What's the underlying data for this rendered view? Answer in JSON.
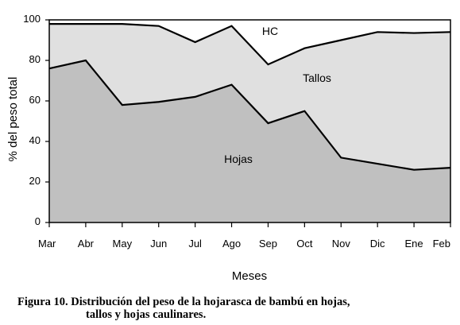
{
  "chart_data": {
    "type": "area",
    "stacked": true,
    "categories": [
      "Mar",
      "Abr",
      "May",
      "Jun",
      "Jul",
      "Ago",
      "Sep",
      "Oct",
      "Nov",
      "Dic",
      "Ene",
      "Feb"
    ],
    "series": [
      {
        "name": "Hojas",
        "cumulative": [
          76,
          80,
          58,
          59.5,
          62,
          68,
          49,
          55,
          32,
          29,
          26,
          27
        ],
        "color": "#c0c0c0"
      },
      {
        "name": "Tallos",
        "cumulative": [
          98,
          98,
          98,
          97,
          89,
          97,
          78,
          86,
          90,
          94,
          93.5,
          94
        ],
        "color": "#e0e0e0"
      },
      {
        "name": "HC",
        "cumulative": [
          100,
          100,
          100,
          100,
          100,
          100,
          100,
          100,
          100,
          100,
          100,
          100
        ],
        "color": "#ffffff"
      }
    ],
    "ylabel": "% del peso total",
    "xlabel": "Meses",
    "ylim": [
      0,
      100
    ],
    "yticks": [
      "0",
      "20",
      "40",
      "60",
      "80",
      "100"
    ],
    "grid": false
  },
  "caption": {
    "line1": "Figura 10. Distribución del peso de la hojarasca de bambú en hojas,",
    "line2": "tallos y hojas caulinares."
  }
}
